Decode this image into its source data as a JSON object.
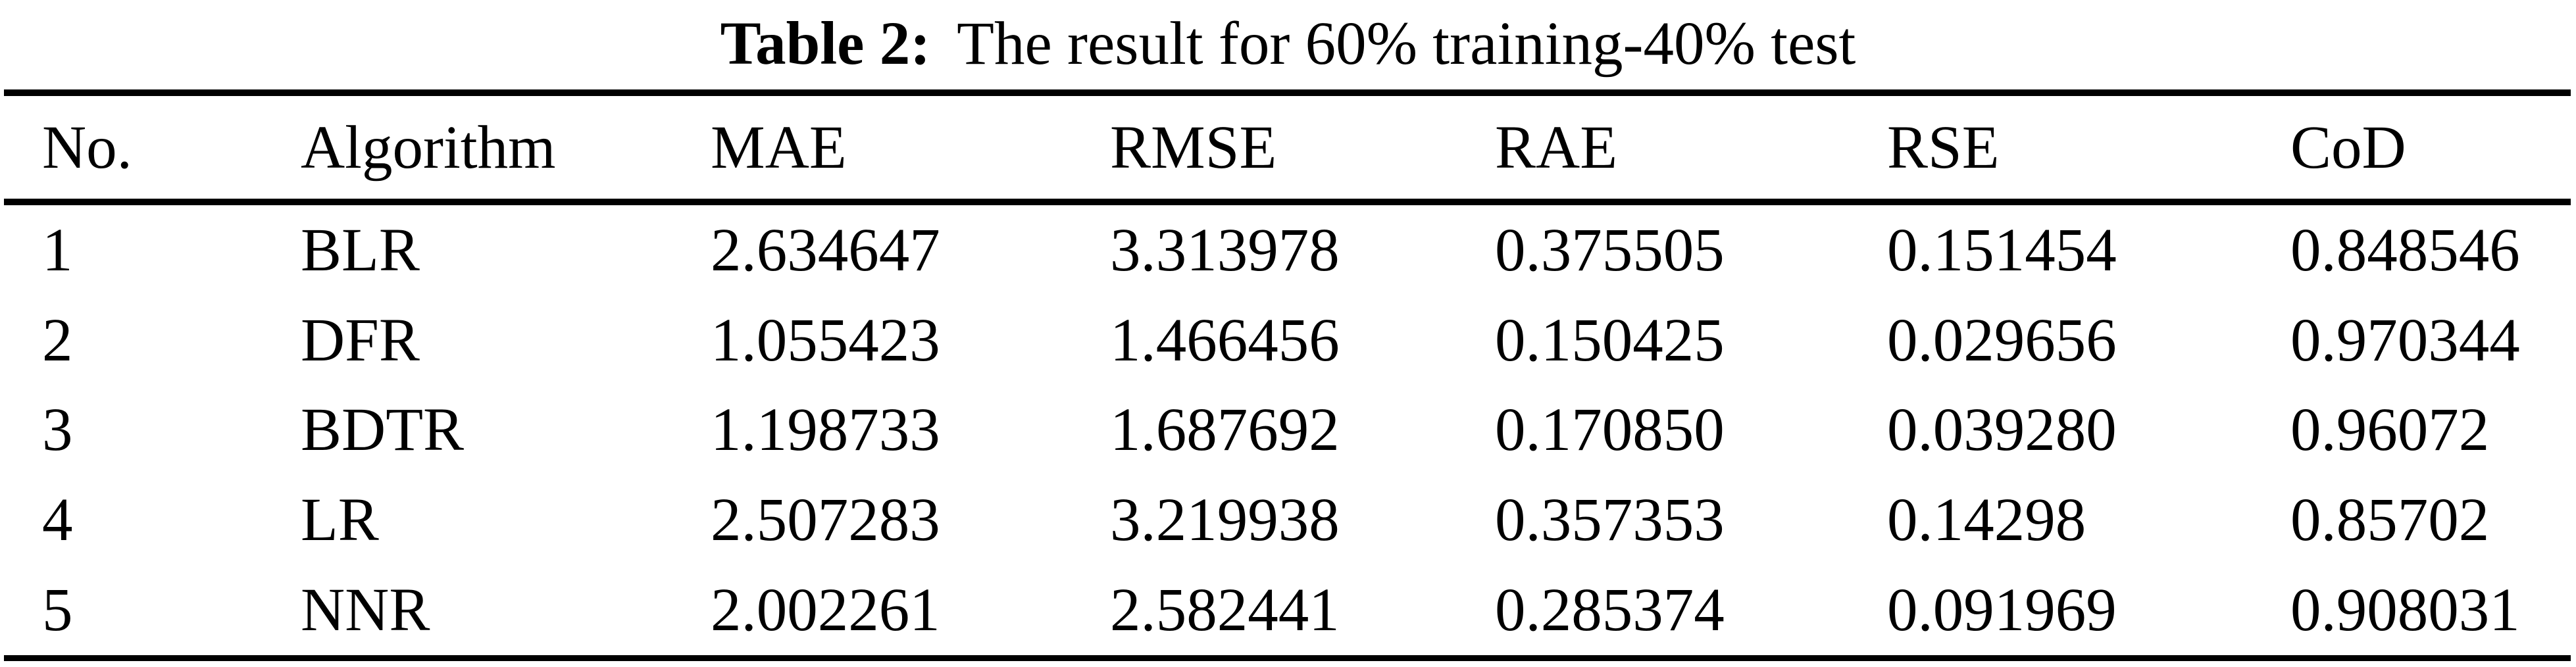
{
  "caption": {
    "label": "Table 2:",
    "text": "The result for 60% training-40% test"
  },
  "table": {
    "columns": [
      "No.",
      "Algorithm",
      "MAE",
      "RMSE",
      "RAE",
      "RSE",
      "CoD"
    ],
    "rows": [
      [
        "1",
        "BLR",
        "2.634647",
        "3.313978",
        "0.375505",
        "0.151454",
        "0.848546"
      ],
      [
        "2",
        "DFR",
        "1.055423",
        "1.466456",
        "0.150425",
        "0.029656",
        "0.970344"
      ],
      [
        "3",
        "BDTR",
        "1.198733",
        "1.687692",
        "0.170850",
        "0.039280",
        "0.96072"
      ],
      [
        "4",
        "LR",
        "2.507283",
        "3.219938",
        "0.357353",
        "0.14298",
        "0.85702"
      ],
      [
        "5",
        "NNR",
        "2.002261",
        "2.582441",
        "0.285374",
        "0.091969",
        "0.908031"
      ]
    ]
  }
}
